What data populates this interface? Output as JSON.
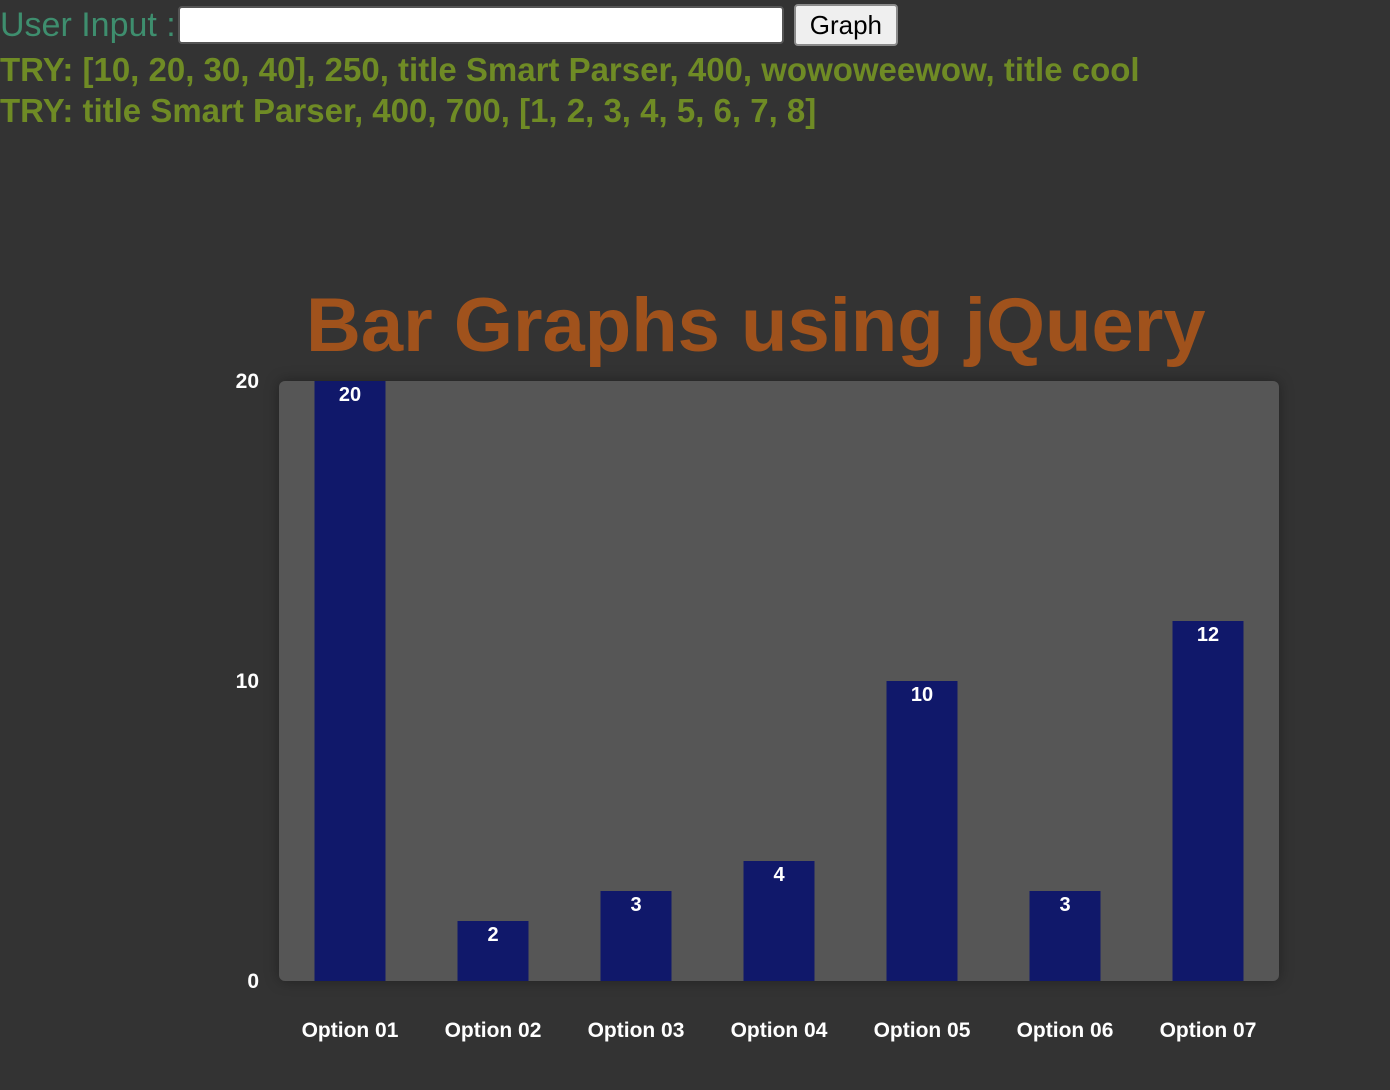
{
  "input": {
    "label": "User Input :",
    "value": "",
    "button_label": "Graph"
  },
  "hints": [
    "TRY: [10, 20, 30, 40], 250, title Smart Parser, 400, wowoweewow, title cool",
    "TRY: title Smart Parser, 400, 700, [1, 2, 3, 4, 5, 6, 7, 8]"
  ],
  "chart_data": {
    "type": "bar",
    "title": "Bar Graphs using jQuery",
    "categories": [
      "Option 01",
      "Option 02",
      "Option 03",
      "Option 04",
      "Option 05",
      "Option 06",
      "Option 07"
    ],
    "values": [
      20,
      2,
      3,
      4,
      10,
      3,
      12
    ],
    "xlabel": "",
    "ylabel": "",
    "ylim": [
      0,
      20
    ],
    "yticks": [
      0,
      10,
      20
    ],
    "grid": false,
    "bar_color": "#10186a",
    "background_color": "#565656",
    "title_color": "#a0521c"
  }
}
